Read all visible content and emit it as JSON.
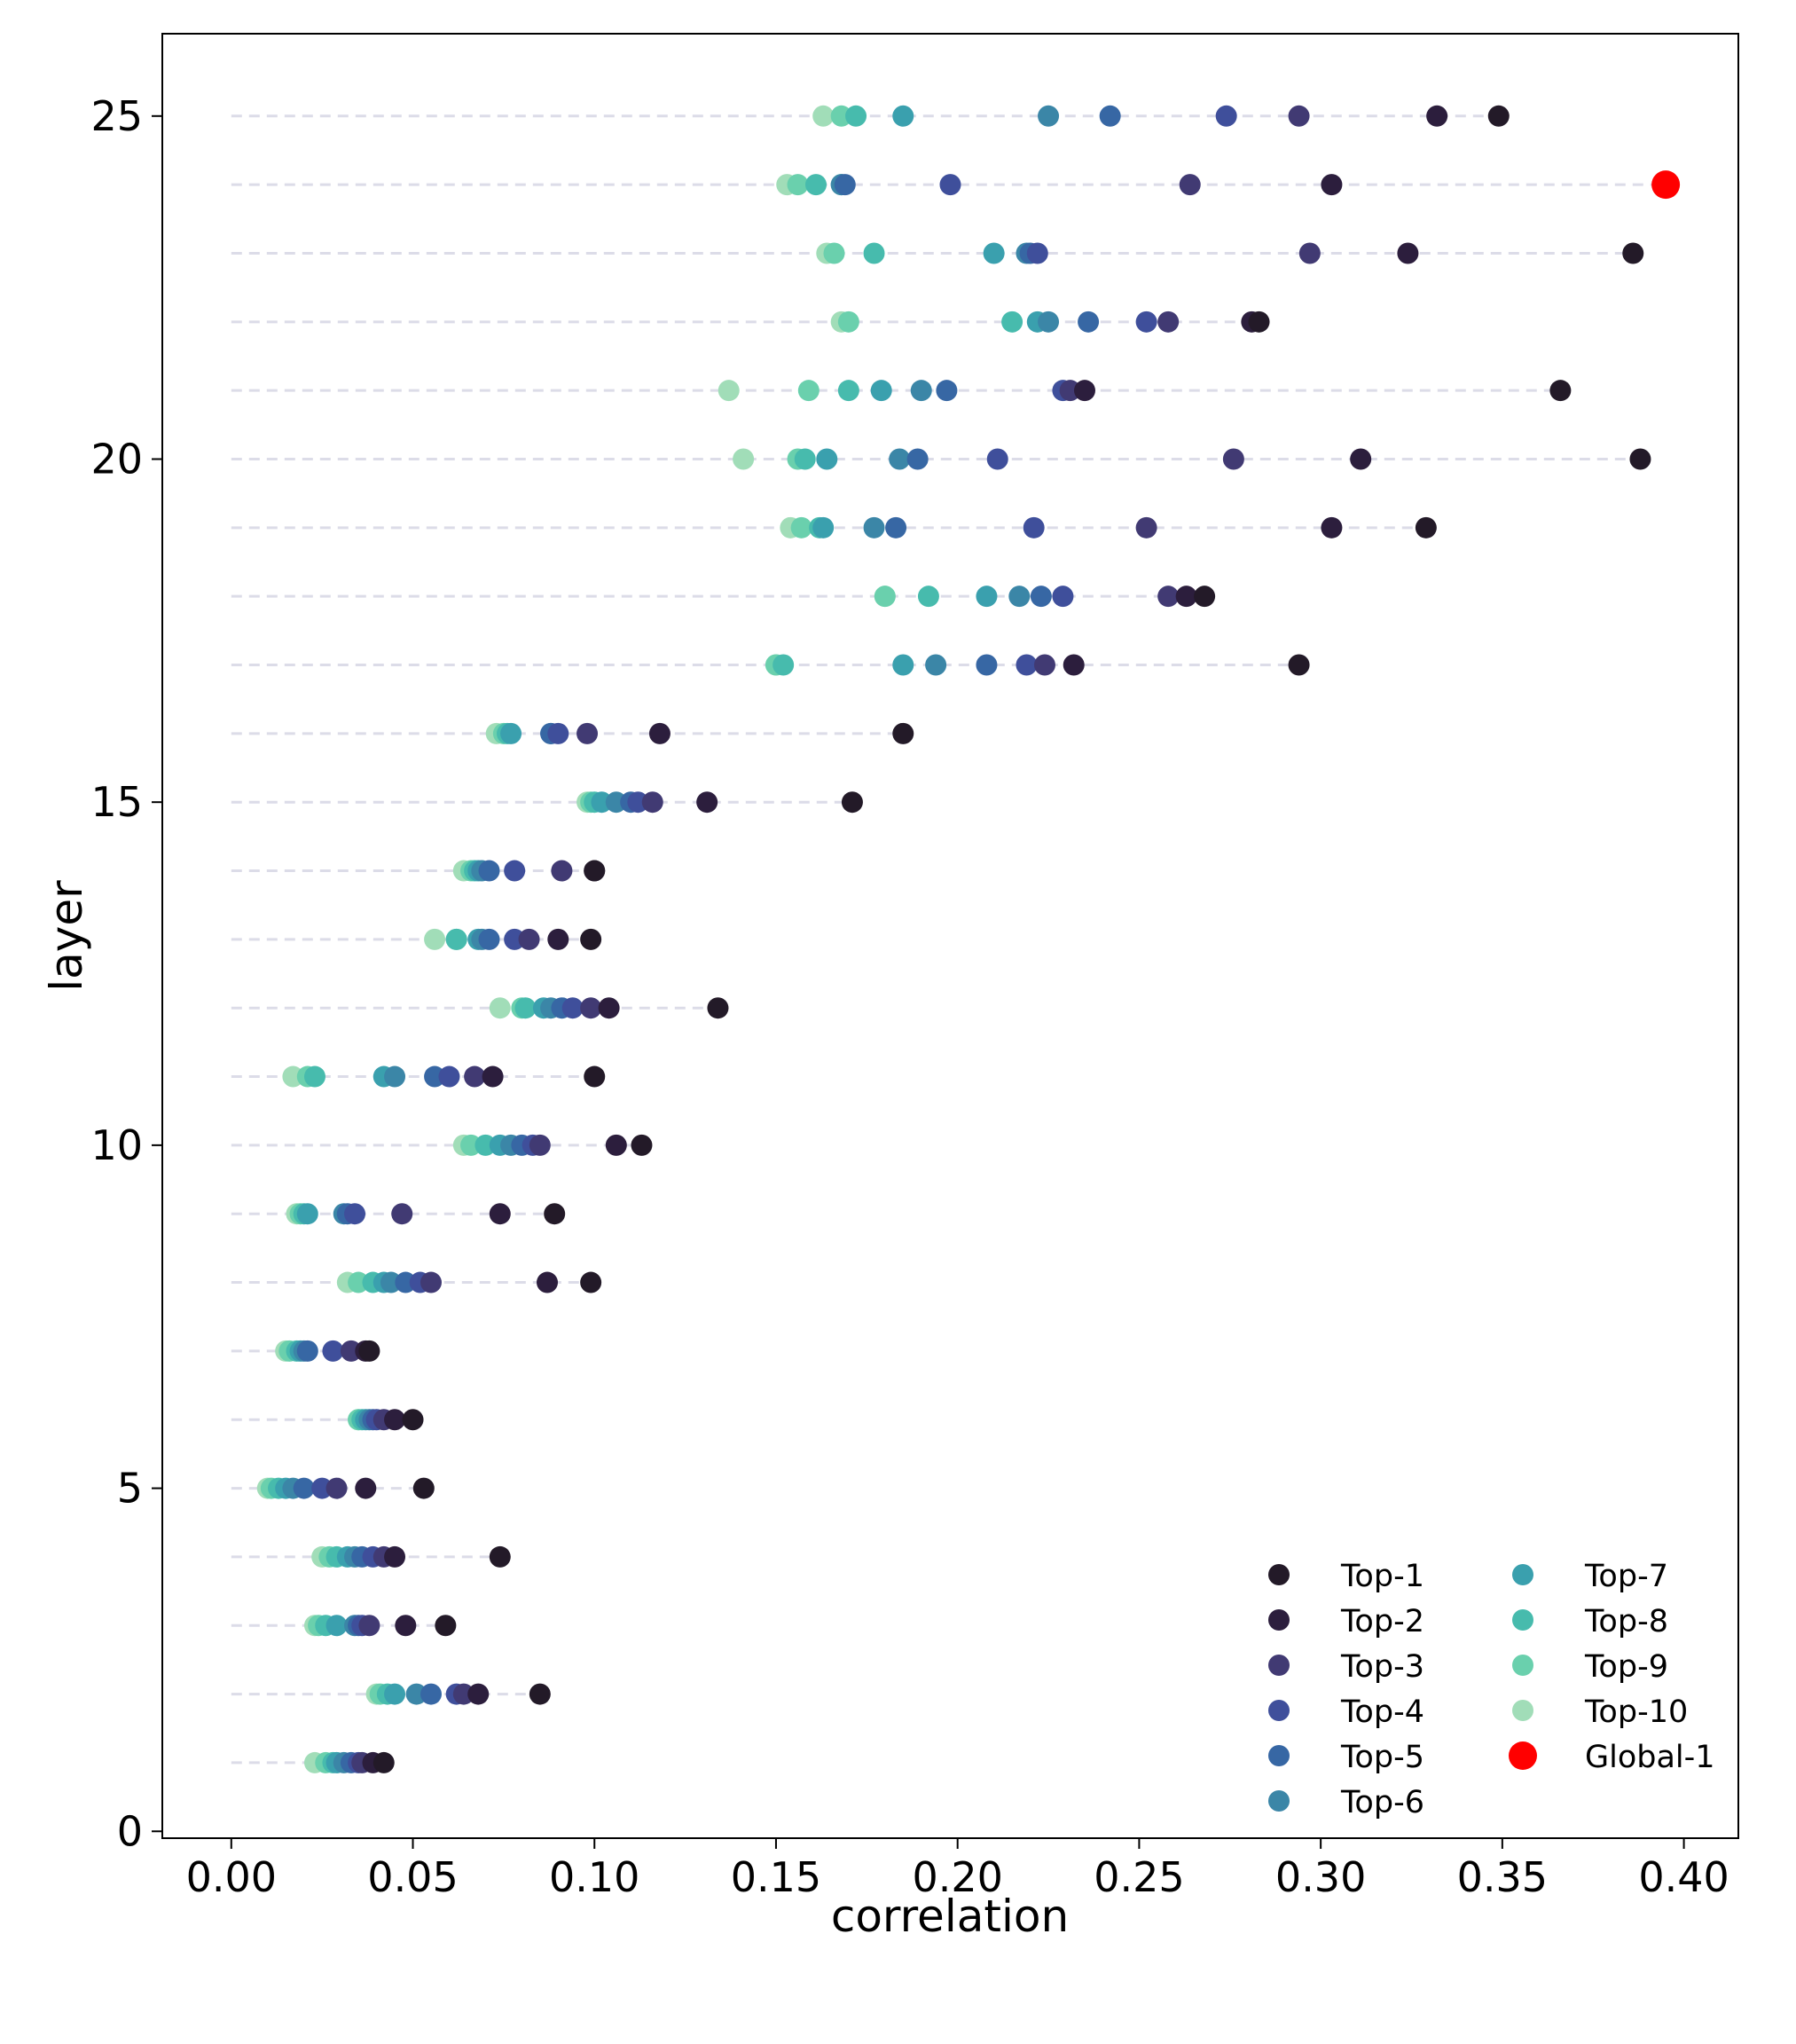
{
  "chart_data": {
    "type": "scatter",
    "xlabel": "correlation",
    "ylabel": "layer",
    "xlim": [
      -0.019,
      0.415
    ],
    "ylim": [
      -0.1,
      26.2
    ],
    "x_ticks": [
      0.0,
      0.05,
      0.1,
      0.15,
      0.2,
      0.25,
      0.3,
      0.35,
      0.4
    ],
    "x_tick_labels": [
      "0.00",
      "0.05",
      "0.10",
      "0.15",
      "0.20",
      "0.25",
      "0.30",
      "0.35",
      "0.40"
    ],
    "y_ticks": [
      0,
      5,
      10,
      15,
      20,
      25
    ],
    "y_tick_labels": [
      "0",
      "5",
      "10",
      "15",
      "20",
      "25"
    ],
    "legend_placement": "lower-right",
    "legend_ncol": 2,
    "guide_lines": "dashed horizontal line per layer from 0 to max correlation",
    "layers": [
      1,
      2,
      3,
      4,
      5,
      6,
      7,
      8,
      9,
      10,
      11,
      12,
      13,
      14,
      15,
      16,
      17,
      18,
      19,
      20,
      21,
      22,
      23,
      24,
      25
    ],
    "series": [
      {
        "name": "Top-1",
        "color": "#231a28",
        "values": [
          0.042,
          0.085,
          0.059,
          0.074,
          0.053,
          0.05,
          0.038,
          0.099,
          0.089,
          0.113,
          0.1,
          0.134,
          0.099,
          0.1,
          0.171,
          0.185,
          0.294,
          0.268,
          0.329,
          0.388,
          0.366,
          0.283,
          0.386,
          0.395,
          0.349
        ]
      },
      {
        "name": "Top-2",
        "color": "#2c1e3d",
        "values": [
          0.039,
          0.068,
          0.048,
          0.045,
          0.037,
          0.045,
          0.037,
          0.087,
          0.074,
          0.106,
          0.072,
          0.104,
          0.09,
          0.1,
          0.131,
          0.118,
          0.232,
          0.263,
          0.303,
          0.311,
          0.235,
          0.281,
          0.324,
          0.303,
          0.332
        ]
      },
      {
        "name": "Top-3",
        "color": "#413a73",
        "values": [
          0.036,
          0.064,
          0.038,
          0.042,
          0.029,
          0.042,
          0.033,
          0.055,
          0.047,
          0.085,
          0.067,
          0.099,
          0.082,
          0.091,
          0.116,
          0.098,
          0.224,
          0.258,
          0.252,
          0.276,
          0.231,
          0.258,
          0.297,
          0.264,
          0.294
        ]
      },
      {
        "name": "Top-4",
        "color": "#3f4f9b",
        "values": [
          0.035,
          0.062,
          0.036,
          0.039,
          0.025,
          0.04,
          0.028,
          0.052,
          0.034,
          0.083,
          0.06,
          0.094,
          0.078,
          0.078,
          0.112,
          0.09,
          0.219,
          0.229,
          0.221,
          0.211,
          0.229,
          0.252,
          0.222,
          0.198,
          0.274
        ]
      },
      {
        "name": "Top-5",
        "color": "#3767a4",
        "values": [
          0.033,
          0.055,
          0.035,
          0.036,
          0.02,
          0.039,
          0.021,
          0.048,
          0.032,
          0.08,
          0.056,
          0.091,
          0.071,
          0.071,
          0.11,
          0.088,
          0.208,
          0.223,
          0.183,
          0.189,
          0.197,
          0.236,
          0.22,
          0.169,
          0.242
        ]
      },
      {
        "name": "Top-6",
        "color": "#3b86a7",
        "values": [
          0.031,
          0.051,
          0.034,
          0.034,
          0.017,
          0.038,
          0.02,
          0.044,
          0.031,
          0.077,
          0.045,
          0.088,
          0.069,
          0.069,
          0.106,
          0.088,
          0.194,
          0.217,
          0.177,
          0.184,
          0.19,
          0.225,
          0.219,
          0.168,
          0.225
        ]
      },
      {
        "name": "Top-7",
        "color": "#3aa0ae",
        "values": [
          0.029,
          0.045,
          0.029,
          0.032,
          0.015,
          0.037,
          0.019,
          0.042,
          0.021,
          0.074,
          0.042,
          0.086,
          0.068,
          0.068,
          0.102,
          0.077,
          0.185,
          0.208,
          0.163,
          0.164,
          0.179,
          0.222,
          0.21,
          0.168,
          0.185
        ]
      },
      {
        "name": "Top-8",
        "color": "#47bbad",
        "values": [
          0.028,
          0.043,
          0.026,
          0.029,
          0.013,
          0.036,
          0.018,
          0.039,
          0.02,
          0.07,
          0.023,
          0.081,
          0.062,
          0.067,
          0.1,
          0.076,
          0.152,
          0.192,
          0.162,
          0.158,
          0.17,
          0.215,
          0.177,
          0.161,
          0.172
        ]
      },
      {
        "name": "Top-9",
        "color": "#6ad0ad",
        "values": [
          0.026,
          0.041,
          0.024,
          0.027,
          0.011,
          0.035,
          0.016,
          0.035,
          0.019,
          0.066,
          0.021,
          0.08,
          0.062,
          0.066,
          0.099,
          0.075,
          0.15,
          0.18,
          0.157,
          0.156,
          0.159,
          0.17,
          0.166,
          0.156,
          0.168
        ]
      },
      {
        "name": "Top-10",
        "color": "#a1ddb8",
        "values": [
          0.023,
          0.04,
          0.023,
          0.025,
          0.01,
          0.035,
          0.015,
          0.032,
          0.018,
          0.064,
          0.017,
          0.074,
          0.056,
          0.064,
          0.098,
          0.073,
          0.15,
          0.18,
          0.154,
          0.141,
          0.137,
          0.168,
          0.164,
          0.153,
          0.163
        ]
      },
      {
        "name": "Global-1",
        "color": "#ff0000",
        "layer": 24,
        "value": 0.395
      }
    ]
  }
}
